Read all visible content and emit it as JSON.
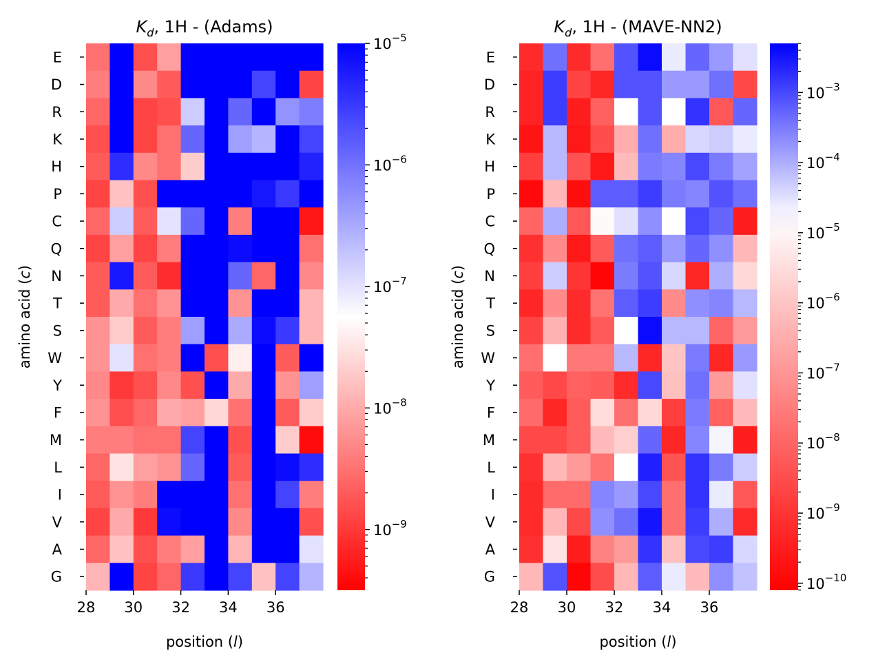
{
  "chart_data": [
    {
      "type": "heatmap",
      "title": "K_d, 1H - (Adams)",
      "title_parts": {
        "symbol": "K",
        "subscript": "d",
        "rest": ", 1H - (Adams)"
      },
      "xlabel": "position (l)",
      "xlabel_parts": {
        "pre": "position (",
        "italic": "l",
        "post": ")"
      },
      "ylabel": "amino acid (c)",
      "ylabel_parts": {
        "pre": "amino acid (",
        "italic": "c",
        "post": ")"
      },
      "x": [
        28,
        29,
        30,
        31,
        32,
        33,
        34,
        35,
        36,
        37
      ],
      "x_ticks": [
        "28",
        "30",
        "32",
        "34",
        "36"
      ],
      "rows": [
        "E",
        "D",
        "R",
        "K",
        "H",
        "P",
        "C",
        "Q",
        "N",
        "T",
        "S",
        "W",
        "Y",
        "F",
        "M",
        "L",
        "I",
        "V",
        "A",
        "G"
      ],
      "log10_values": [
        [
          -8.5,
          -5,
          -8.8,
          -8.1,
          -5,
          -5,
          -5,
          -5,
          -5,
          -5
        ],
        [
          -8.4,
          -5,
          -8.3,
          -8.7,
          -5,
          -5,
          -5,
          -5.6,
          -5,
          -8.9
        ],
        [
          -8.6,
          -5,
          -8.9,
          -8.8,
          -6.8,
          -5,
          -5.9,
          -5,
          -6.3,
          -6.1
        ],
        [
          -8.8,
          -5,
          -8.9,
          -8.5,
          -5.9,
          -5,
          -6.4,
          -6.6,
          -5,
          -5.6
        ],
        [
          -8.7,
          -5.4,
          -8.3,
          -8.5,
          -7.7,
          -5,
          -5,
          -5,
          -5,
          -5.3
        ],
        [
          -8.9,
          -7.8,
          -8.8,
          -5,
          -5,
          -5,
          -5,
          -5.2,
          -5.5,
          -5
        ],
        [
          -8.6,
          -6.8,
          -8.7,
          -7,
          -5.9,
          -5,
          -8.4,
          -5,
          -5,
          -9.3
        ],
        [
          -8.9,
          -8.1,
          -8.9,
          -8.4,
          -5,
          -5,
          -5.1,
          -5,
          -5,
          -8.5
        ],
        [
          -8.7,
          -5.2,
          -8.7,
          -9.1,
          -5,
          -5,
          -5.9,
          -8.6,
          -5,
          -8.3
        ],
        [
          -8.7,
          -8,
          -8.5,
          -8.2,
          -5,
          -5,
          -8.2,
          -5,
          -5,
          -7.9
        ],
        [
          -8.2,
          -7.7,
          -8.7,
          -8.4,
          -6.4,
          -5,
          -6.5,
          -5.1,
          -5.5,
          -7.9
        ],
        [
          -8.2,
          -7,
          -8.5,
          -8.4,
          -5,
          -8.8,
          -7.4,
          -5,
          -8.7,
          -5
        ],
        [
          -8.3,
          -9,
          -8.8,
          -8.3,
          -8.8,
          -5,
          -8,
          -5,
          -8.2,
          -6.4
        ],
        [
          -8.2,
          -8.8,
          -8.6,
          -8,
          -8.1,
          -7.6,
          -8.5,
          -5,
          -8.7,
          -7.7
        ],
        [
          -8.4,
          -8.4,
          -8.5,
          -8.5,
          -5.6,
          -5,
          -8.8,
          -5,
          -7.7,
          -9.4
        ],
        [
          -8.6,
          -7.5,
          -8.1,
          -8.2,
          -5.9,
          -5,
          -8.7,
          -5,
          -5.1,
          -5.4
        ],
        [
          -8.7,
          -8.2,
          -8.4,
          -5,
          -5,
          -5,
          -8.5,
          -5,
          -5.6,
          -8.4
        ],
        [
          -8.9,
          -8,
          -9,
          -5.1,
          -5,
          -5,
          -8.3,
          -5,
          -5,
          -8.8
        ],
        [
          -8.6,
          -7.8,
          -8.8,
          -8.4,
          -8.1,
          -5,
          -7.9,
          -5,
          -5,
          -7
        ],
        [
          -7.9,
          -5,
          -8.9,
          -8.6,
          -5.5,
          -5,
          -5.6,
          -7.8,
          -5.6,
          -6.6
        ]
      ],
      "color_scale": {
        "log10_min": -9.5,
        "log10_max": -5,
        "low_color": "#ff0000",
        "mid_color": "#ffffff",
        "high_color": "#0000ff"
      },
      "colorbar_ticks": [
        {
          "mantissa": "10",
          "exponent": "−5",
          "log10": -5
        },
        {
          "mantissa": "10",
          "exponent": "−6",
          "log10": -6
        },
        {
          "mantissa": "10",
          "exponent": "−7",
          "log10": -7
        },
        {
          "mantissa": "10",
          "exponent": "−8",
          "log10": -8
        },
        {
          "mantissa": "10",
          "exponent": "−9",
          "log10": -9
        }
      ]
    },
    {
      "type": "heatmap",
      "title": "K_d, 1H - (MAVE-NN2)",
      "title_parts": {
        "symbol": "K",
        "subscript": "d",
        "rest": ", 1H - (MAVE-NN2)"
      },
      "xlabel": "position (l)",
      "xlabel_parts": {
        "pre": "position (",
        "italic": "l",
        "post": ")"
      },
      "ylabel": "amino acid (c)",
      "ylabel_parts": {
        "pre": "amino acid (",
        "italic": "c",
        "post": ")"
      },
      "x": [
        28,
        29,
        30,
        31,
        32,
        33,
        34,
        35,
        36,
        37
      ],
      "x_ticks": [
        "28",
        "30",
        "32",
        "34",
        "36"
      ],
      "rows": [
        "E",
        "D",
        "R",
        "K",
        "H",
        "P",
        "C",
        "Q",
        "N",
        "T",
        "S",
        "W",
        "Y",
        "F",
        "M",
        "L",
        "I",
        "V",
        "A",
        "G"
      ],
      "log10_values": [
        [
          -9.2,
          -3.4,
          -9.2,
          -7.8,
          -3.1,
          -2.4,
          -4.6,
          -3.3,
          -3.8,
          -4.5
        ],
        [
          -9.4,
          -2.9,
          -8.7,
          -9.3,
          -3.1,
          -3.1,
          -3.8,
          -3.8,
          -3.4,
          -8.6
        ],
        [
          -9.4,
          -2.9,
          -9.5,
          -8.1,
          -4.8,
          -3.1,
          -4.8,
          -2.8,
          -8.3,
          -3.3
        ],
        [
          -9.7,
          -4.1,
          -9.6,
          -8.5,
          -6.5,
          -3.4,
          -6.5,
          -4.4,
          -4.3,
          -4.6
        ],
        [
          -8.8,
          -4.1,
          -8.4,
          -9.6,
          -6.2,
          -3.5,
          -3.6,
          -3,
          -3.5,
          -3.9
        ],
        [
          -9.9,
          -6.3,
          -9.8,
          -3.2,
          -3.2,
          -2.9,
          -3.5,
          -3.6,
          -3.1,
          -3.4
        ],
        [
          -8,
          -4,
          -8.3,
          -4.9,
          -4.5,
          -3.7,
          -4.8,
          -3,
          -3.3,
          -9.5
        ],
        [
          -9.1,
          -7.2,
          -9.6,
          -8.2,
          -3.4,
          -3.2,
          -3.8,
          -3.3,
          -3.7,
          -6.3
        ],
        [
          -8.8,
          -4.3,
          -9,
          -10,
          -3.5,
          -3.1,
          -4.4,
          -9.3,
          -4,
          -5.6
        ],
        [
          -9.3,
          -7.2,
          -9.2,
          -7.7,
          -3.2,
          -2.9,
          -7.2,
          -3.7,
          -3.6,
          -4.1
        ],
        [
          -8.7,
          -6.4,
          -9.2,
          -8.2,
          -4.8,
          -2.4,
          -4.1,
          -4.1,
          -8,
          -6.9
        ],
        [
          -7.8,
          -4.8,
          -7.6,
          -7.6,
          -4.1,
          -9.3,
          -6,
          -3.5,
          -9.3,
          -3.8
        ],
        [
          -8.2,
          -8.6,
          -8.1,
          -8.2,
          -9.2,
          -3,
          -6.1,
          -3.4,
          -6.9,
          -4.5
        ],
        [
          -7.9,
          -9.3,
          -8.2,
          -5.5,
          -7.8,
          -5.6,
          -8.8,
          -3.5,
          -8.1,
          -6.2
        ],
        [
          -8.6,
          -8.6,
          -8.2,
          -6.2,
          -5.8,
          -3.3,
          -9.3,
          -3.6,
          -4.7,
          -9.5
        ],
        [
          -9.1,
          -6.3,
          -6.9,
          -7.7,
          -4.8,
          -2.6,
          -8.4,
          -2.8,
          -3.5,
          -4.3
        ],
        [
          -9.2,
          -7.9,
          -7.9,
          -3.6,
          -3.8,
          -3,
          -7.8,
          -2.8,
          -4.6,
          -8.3
        ],
        [
          -9.2,
          -6.3,
          -8.6,
          -3.7,
          -3.4,
          -2.5,
          -7.8,
          -2.9,
          -4,
          -9.2
        ],
        [
          -9.1,
          -5.4,
          -9.5,
          -7.4,
          -6.9,
          -2.8,
          -6.1,
          -3,
          -2.9,
          -4.4
        ],
        [
          -6.3,
          -3.1,
          -10,
          -8.5,
          -6.3,
          -3.2,
          -4.6,
          -6.2,
          -3.7,
          -4.2
        ]
      ],
      "color_scale": {
        "log10_min": -10.1,
        "log10_max": -2.3,
        "low_color": "#ff0000",
        "mid_color": "#ffffff",
        "high_color": "#0000ff"
      },
      "colorbar_ticks": [
        {
          "mantissa": "10",
          "exponent": "−3",
          "log10": -3
        },
        {
          "mantissa": "10",
          "exponent": "−4",
          "log10": -4
        },
        {
          "mantissa": "10",
          "exponent": "−5",
          "log10": -5
        },
        {
          "mantissa": "10",
          "exponent": "−6",
          "log10": -6
        },
        {
          "mantissa": "10",
          "exponent": "−7",
          "log10": -7
        },
        {
          "mantissa": "10",
          "exponent": "−8",
          "log10": -8
        },
        {
          "mantissa": "10",
          "exponent": "−9",
          "log10": -9
        },
        {
          "mantissa": "10",
          "exponent": "−10",
          "log10": -10
        }
      ]
    }
  ]
}
